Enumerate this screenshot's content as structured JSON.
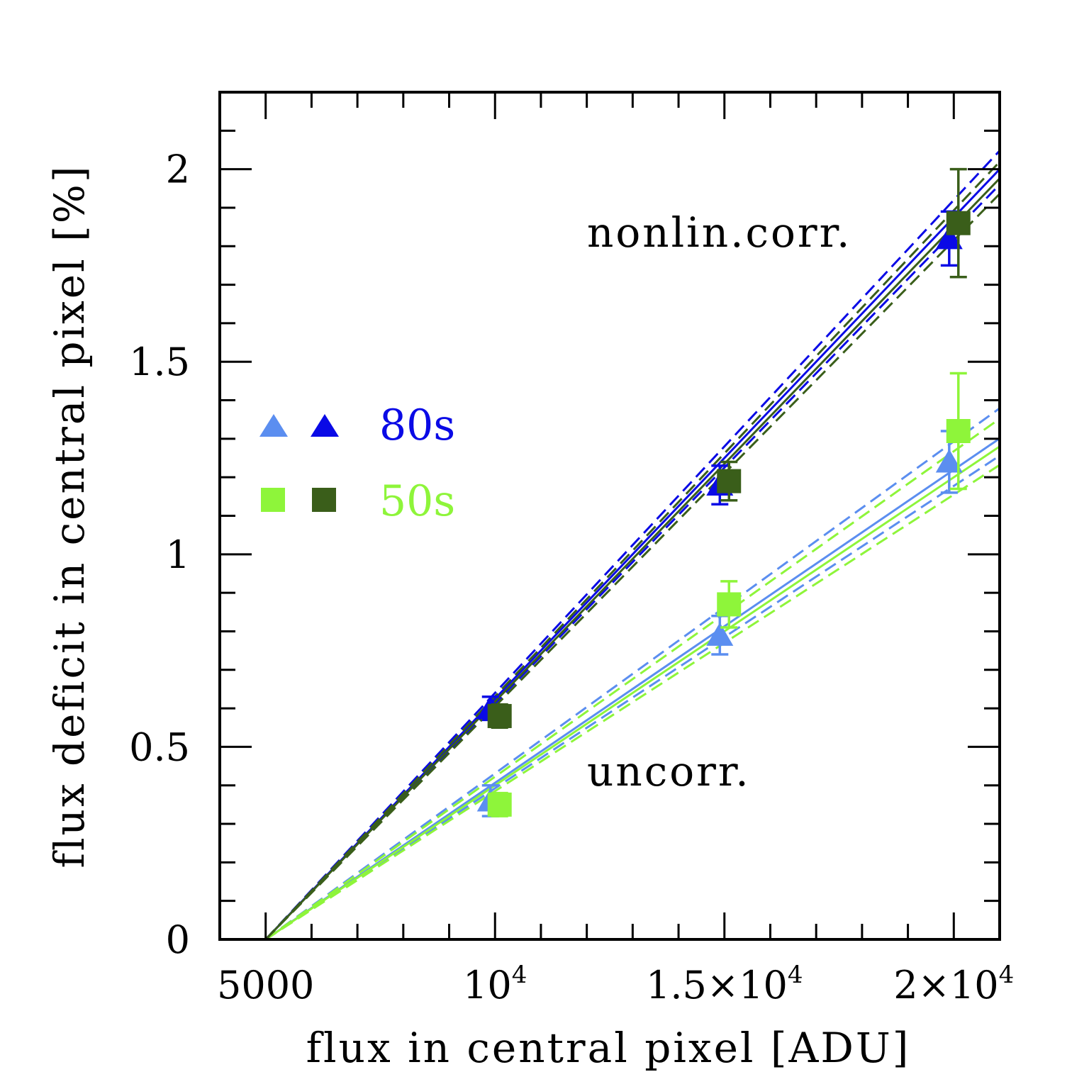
{
  "chart_data": {
    "type": "scatter",
    "xlabel": "flux in central pixel [ADU]",
    "ylabel": "flux deficit in central pixel [%]",
    "xlim": [
      4000,
      21000
    ],
    "ylim": [
      0,
      2.2
    ],
    "x_ticks": [
      {
        "value": 5000,
        "base": "5000",
        "exp": ""
      },
      {
        "value": 10000,
        "base": "10",
        "exp": "4"
      },
      {
        "value": 15000,
        "base": "1.5×10",
        "exp": "4"
      },
      {
        "value": 20000,
        "base": "2×10",
        "exp": "4"
      }
    ],
    "y_ticks": [
      {
        "value": 0,
        "label": "0"
      },
      {
        "value": 0.5,
        "label": "0.5"
      },
      {
        "value": 1,
        "label": "1"
      },
      {
        "value": 1.5,
        "label": "1.5"
      },
      {
        "value": 2,
        "label": "2"
      }
    ],
    "annotations": [
      {
        "text": "nonlin.corr.",
        "x": 12000,
        "y": 1.82
      },
      {
        "text": "uncorr.",
        "x": 12000,
        "y": 0.42
      }
    ],
    "legend": {
      "placement": "left-middle",
      "entries": [
        {
          "label": "80s",
          "marker": "triangle",
          "colors": [
            "#5b8ef0",
            "#0a0ae6"
          ],
          "label_color": "#0a0ae6"
        },
        {
          "label": "50s",
          "marker": "square",
          "colors": [
            "#8ef53a",
            "#3a5e1a"
          ],
          "label_color": "#8ef53a"
        }
      ]
    },
    "series": [
      {
        "marker": "triangle",
        "color": "#5b8ef0",
        "group": "uncorr",
        "points": [
          {
            "x": 9900,
            "y": 0.36,
            "err": 0.04
          },
          {
            "x": 14900,
            "y": 0.79,
            "err": 0.05
          },
          {
            "x": 19900,
            "y": 1.24,
            "err": 0.08
          }
        ],
        "fit_slope": 8.13e-05,
        "fit_slope_lo": 7.85e-05,
        "fit_slope_hi": 8.62e-05
      },
      {
        "marker": "square",
        "color": "#8ef53a",
        "group": "uncorr",
        "points": [
          {
            "x": 10100,
            "y": 0.35,
            "err": 0.03
          },
          {
            "x": 15100,
            "y": 0.87,
            "err": 0.06
          },
          {
            "x": 20100,
            "y": 1.32,
            "err": 0.15
          }
        ],
        "fit_slope": 8e-05,
        "fit_slope_lo": 7.7e-05,
        "fit_slope_hi": 8.45e-05
      },
      {
        "marker": "triangle",
        "color": "#0a0ae6",
        "group": "corr",
        "points": [
          {
            "x": 9900,
            "y": 0.6,
            "err": 0.03
          },
          {
            "x": 14900,
            "y": 1.18,
            "err": 0.05
          },
          {
            "x": 19900,
            "y": 1.82,
            "err": 0.07
          }
        ],
        "fit_slope": 0.000125,
        "fit_slope_lo": 0.0001225,
        "fit_slope_hi": 0.000128
      },
      {
        "marker": "square",
        "color": "#3a5e1a",
        "group": "corr",
        "points": [
          {
            "x": 10100,
            "y": 0.58,
            "err": 0.03
          },
          {
            "x": 15100,
            "y": 1.19,
            "err": 0.05
          },
          {
            "x": 20100,
            "y": 1.86,
            "err": 0.14
          }
        ],
        "fit_slope": 0.0001235,
        "fit_slope_lo": 0.000121,
        "fit_slope_hi": 0.0001262
      }
    ],
    "fit_origin_x": 5000,
    "grid": false
  }
}
